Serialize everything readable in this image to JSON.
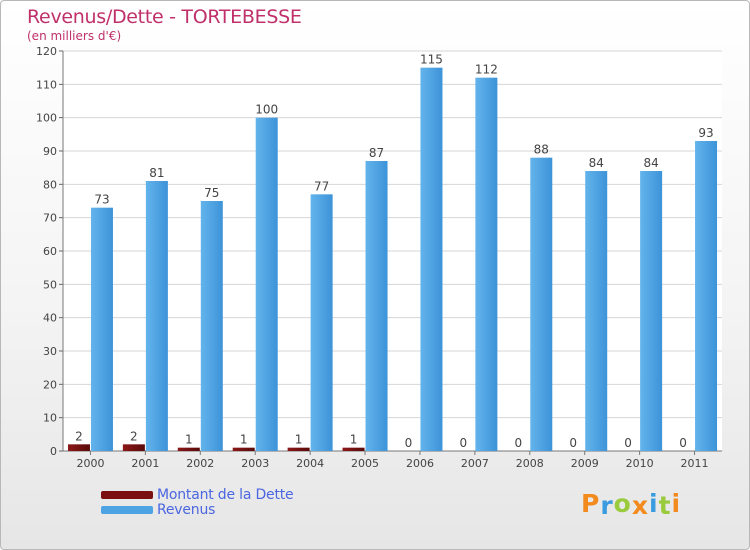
{
  "chart_data": {
    "type": "bar",
    "title": "Revenus/Dette - TORTEBESSE",
    "subtitle": "(en milliers d'€)",
    "categories": [
      "2000",
      "2001",
      "2002",
      "2003",
      "2004",
      "2005",
      "2006",
      "2007",
      "2008",
      "2009",
      "2010",
      "2011"
    ],
    "series": [
      {
        "name": "Montant de la Dette",
        "color": "#7a1010",
        "values": [
          2,
          2,
          1,
          1,
          1,
          1,
          0,
          0,
          0,
          0,
          0,
          0
        ]
      },
      {
        "name": "Revenus",
        "color": "#4ea3e2",
        "values": [
          73,
          81,
          75,
          100,
          77,
          87,
          115,
          112,
          88,
          84,
          84,
          93
        ]
      }
    ],
    "ylim": [
      0,
      120
    ],
    "yticks": [
      0,
      10,
      20,
      30,
      40,
      50,
      60,
      70,
      80,
      90,
      100,
      110,
      120
    ],
    "grid": true,
    "legend_position": "bottom-left"
  },
  "brand": {
    "text": "Proxiti",
    "colors": [
      "#f28a1e",
      "#3a9be0",
      "#9acb3c",
      "#f28a1e",
      "#3a9be0",
      "#9acb3c",
      "#f28a1e"
    ]
  }
}
